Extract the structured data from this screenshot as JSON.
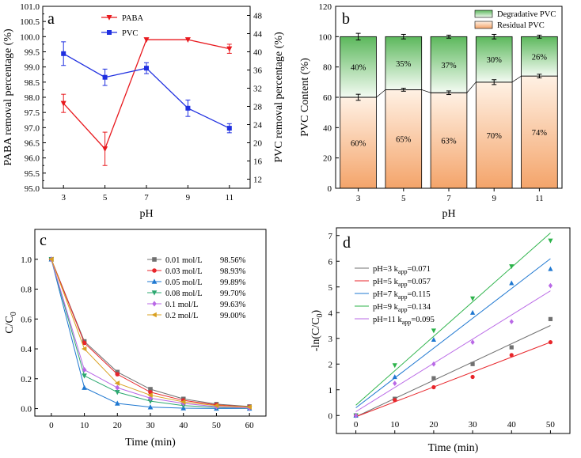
{
  "chart_data": [
    {
      "panel": "a",
      "type": "line",
      "xlabel": "pH",
      "ylabel": "PABA removal percentage (%)",
      "y2label": "PVC removal percentage (%)",
      "x": [
        3,
        5,
        7,
        9,
        11
      ],
      "x_ticks": [
        "3",
        "5",
        "7",
        "9",
        "11"
      ],
      "ylim": [
        95.0,
        101.0
      ],
      "y_ticks": [
        "95.0",
        "95.5",
        "96.0",
        "96.5",
        "97.0",
        "97.5",
        "98.0",
        "98.5",
        "99.0",
        "99.5",
        "100.0",
        "100.5",
        "101.0"
      ],
      "y2lim": [
        10,
        50
      ],
      "y2_ticks": [
        "12",
        "16",
        "20",
        "24",
        "28",
        "32",
        "36",
        "40",
        "44",
        "48"
      ],
      "series": [
        {
          "name": "PABA",
          "axis": "left",
          "color": "#e8191e",
          "marker": "triangle-down",
          "values": [
            97.8,
            96.3,
            99.9,
            99.9,
            99.6
          ],
          "errors": [
            0.3,
            0.55,
            0,
            0,
            0.15
          ]
        },
        {
          "name": "PVC",
          "axis": "right",
          "color": "#1f2fe0",
          "marker": "square",
          "values": [
            39.6,
            34.4,
            36.4,
            27.6,
            23.2
          ],
          "errors": [
            2.6,
            1.8,
            1.2,
            1.8,
            1.0
          ]
        }
      ]
    },
    {
      "panel": "b",
      "type": "bar",
      "stacked": true,
      "xlabel": "pH",
      "ylabel": "PVC Content (%)",
      "categories": [
        "3",
        "5",
        "7",
        "9",
        "11"
      ],
      "ylim": [
        0,
        120
      ],
      "y_ticks": [
        "0",
        "20",
        "40",
        "60",
        "80",
        "100",
        "120"
      ],
      "series": [
        {
          "name": "Residual PVC",
          "color": "#f4a46a",
          "values": [
            60,
            65,
            63,
            70,
            74
          ],
          "labels": [
            "60%",
            "65%",
            "63%",
            "70%",
            "74%"
          ],
          "errors": [
            2.0,
            1.0,
            1.2,
            1.6,
            1.2
          ]
        },
        {
          "name": "Degradative PVC",
          "color": "#5cb85c",
          "values": [
            40,
            35,
            37,
            30,
            26
          ],
          "labels": [
            "40%",
            "35%",
            "37%",
            "30%",
            "26%"
          ],
          "errors": [
            2.2,
            1.5,
            1.0,
            1.5,
            1.0
          ]
        }
      ],
      "legend": [
        "Degradative PVC",
        "Residual PVC"
      ]
    },
    {
      "panel": "c",
      "type": "line",
      "xlabel": "Time (min)",
      "ylabel": "C/C",
      "ylabel_sub": "0",
      "x": [
        0,
        10,
        20,
        30,
        40,
        50,
        60
      ],
      "x_ticks": [
        "0",
        "10",
        "20",
        "30",
        "40",
        "50",
        "60"
      ],
      "xlim": [
        -5,
        65
      ],
      "ylim": [
        -0.05,
        1.2
      ],
      "y_ticks": [
        "0.0",
        "0.2",
        "0.4",
        "0.6",
        "0.8",
        "1.0"
      ],
      "series": [
        {
          "name": "0.01 mol/L",
          "removal": "98.56%",
          "color": "#707070",
          "marker": "square",
          "values": [
            1.0,
            0.45,
            0.245,
            0.13,
            0.065,
            0.03,
            0.014
          ]
        },
        {
          "name": "0.03 mol/L",
          "removal": "98.93%",
          "color": "#e8262b",
          "marker": "circle",
          "values": [
            1.0,
            0.44,
            0.23,
            0.11,
            0.055,
            0.025,
            0.011
          ]
        },
        {
          "name": "0.05 mol/L",
          "removal": "99.89%",
          "color": "#1f78d1",
          "marker": "triangle-up",
          "values": [
            1.0,
            0.14,
            0.035,
            0.01,
            0.003,
            0.001,
            0.001
          ]
        },
        {
          "name": "0.08 mol/L",
          "removal": "99.70%",
          "color": "#2ca870",
          "marker": "triangle-down",
          "values": [
            1.0,
            0.22,
            0.11,
            0.05,
            0.02,
            0.008,
            0.003
          ]
        },
        {
          "name": "0.1 mol/L",
          "removal": "99.63%",
          "color": "#b968e6",
          "marker": "diamond",
          "values": [
            1.0,
            0.26,
            0.14,
            0.07,
            0.035,
            0.013,
            0.004
          ]
        },
        {
          "name": "0.2 mol/L",
          "removal": "99.00%",
          "color": "#d9a020",
          "marker": "triangle-left",
          "values": [
            1.0,
            0.4,
            0.17,
            0.09,
            0.045,
            0.02,
            0.01
          ]
        }
      ]
    },
    {
      "panel": "d",
      "type": "scatter",
      "xlabel": "Time (min)",
      "ylabel": "-ln(C/C",
      "ylabel_sub": "0",
      "ylabel_end": ")",
      "x": [
        0,
        10,
        20,
        30,
        40,
        50
      ],
      "x_ticks": [
        "0",
        "10",
        "20",
        "30",
        "40",
        "50"
      ],
      "xlim": [
        -5,
        55
      ],
      "ylim": [
        -0.7,
        7.3
      ],
      "y_ticks": [
        "0",
        "1",
        "2",
        "3",
        "4",
        "5",
        "6",
        "7"
      ],
      "series": [
        {
          "name": "pH=3",
          "k_label": "k",
          "k_sub": "app",
          "k_value": "=0.071",
          "color": "#707070",
          "marker": "square",
          "values": [
            0,
            0.65,
            1.45,
            2.0,
            2.65,
            3.75
          ],
          "fit": [
            -0.05,
            3.5
          ]
        },
        {
          "name": "pH=5",
          "k_label": "k",
          "k_sub": "app",
          "k_value": "=0.057",
          "color": "#e8262b",
          "marker": "circle",
          "values": [
            0,
            0.6,
            1.1,
            1.5,
            2.35,
            2.85
          ],
          "fit": [
            -0.05,
            2.85
          ]
        },
        {
          "name": "pH=7",
          "k_label": "k",
          "k_sub": "app",
          "k_value": "=0.115",
          "color": "#1f78d1",
          "marker": "triangle-up",
          "values": [
            0,
            1.5,
            2.95,
            4.0,
            5.15,
            5.7
          ],
          "fit": [
            0.3,
            6.1
          ]
        },
        {
          "name": "pH=9",
          "k_label": "k",
          "k_sub": "app",
          "k_value": "=0.134",
          "color": "#2cb34a",
          "marker": "triangle-down",
          "values": [
            0,
            1.95,
            3.3,
            4.55,
            5.8,
            6.8
          ],
          "fit": [
            0.4,
            7.1
          ]
        },
        {
          "name": "pH=11",
          "k_label": "k",
          "k_sub": "app",
          "k_value": "=0.095",
          "color": "#b968e6",
          "marker": "diamond",
          "values": [
            0,
            1.25,
            2.0,
            2.85,
            3.65,
            5.05
          ],
          "fit": [
            0.15,
            4.85
          ]
        }
      ]
    }
  ]
}
